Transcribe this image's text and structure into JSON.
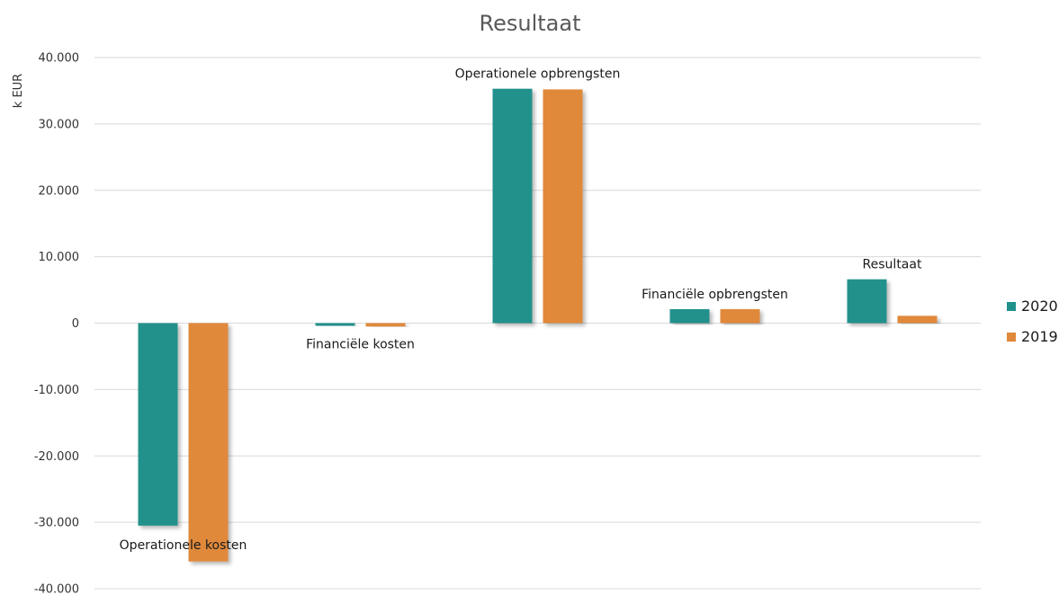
{
  "chart_data": {
    "type": "bar",
    "title": "Resultaat",
    "ylabel": "k EUR",
    "xlabel": "",
    "ylim": [
      -40000,
      40000
    ],
    "yticks": [
      40000,
      30000,
      20000,
      10000,
      0,
      -10000,
      -20000,
      -30000,
      -40000
    ],
    "ytick_labels": [
      "40.000",
      "30.000",
      "20.000",
      "10.000",
      "0",
      "-10.000",
      "-20.000",
      "-30.000",
      "-40.000"
    ],
    "grid": true,
    "legend_position": "right",
    "categories": [
      "Operationele kosten",
      "Financiële kosten",
      "Operationele opbrengsten",
      "Financiële opbrengsten",
      "Resultaat"
    ],
    "series": [
      {
        "name": "2020",
        "color": "#21918c",
        "values": [
          -30500,
          -400,
          35300,
          2100,
          6600
        ]
      },
      {
        "name": "2019",
        "color": "#e0893a",
        "values": [
          -35900,
          -500,
          35200,
          2100,
          1100
        ]
      }
    ]
  }
}
